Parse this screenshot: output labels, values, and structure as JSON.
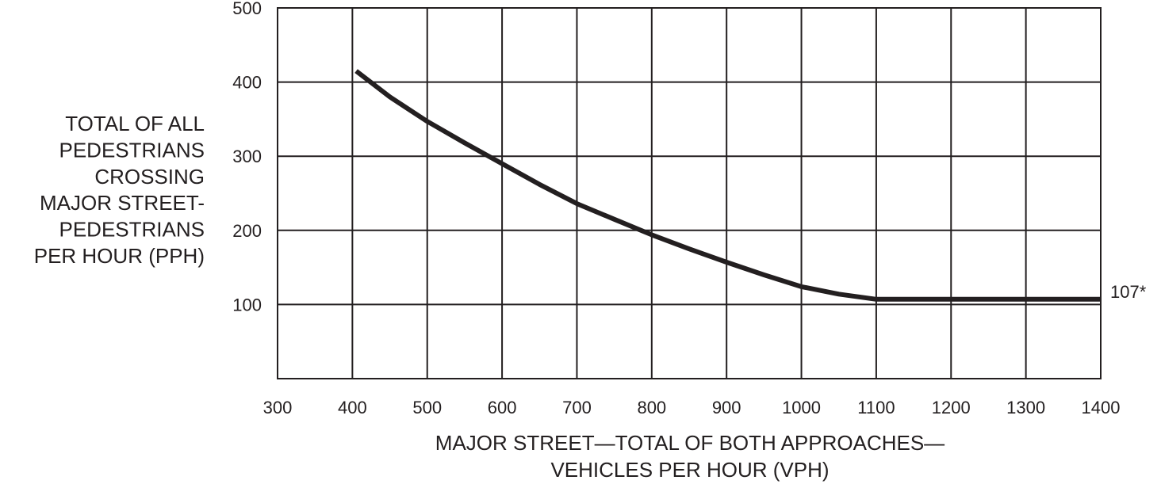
{
  "chart_data": {
    "type": "line",
    "title": "",
    "xlabel_lines": [
      "MAJOR STREET—TOTAL OF BOTH APPROACHES—",
      "VEHICLES PER HOUR (VPH)"
    ],
    "ylabel_lines": [
      "TOTAL OF ALL",
      "PEDESTRIANS",
      "CROSSING",
      "MAJOR STREET-",
      "PEDESTRIANS",
      "PER HOUR (PPH)"
    ],
    "xlim": [
      300,
      1400
    ],
    "ylim": [
      0,
      500
    ],
    "x_ticks": [
      "300",
      "400",
      "500",
      "600",
      "700",
      "800",
      "900",
      "1000",
      "1100",
      "1200",
      "1300",
      "1400"
    ],
    "y_ticks": [
      "100",
      "200",
      "300",
      "400",
      "500"
    ],
    "grid": true,
    "series": [
      {
        "x": [
          405,
          450,
          500,
          550,
          600,
          650,
          700,
          750,
          800,
          850,
          900,
          950,
          1000,
          1050,
          1100,
          1200,
          1300,
          1400
        ],
        "y": [
          415,
          380,
          347,
          318,
          290,
          262,
          236,
          215,
          194,
          175,
          157,
          140,
          124,
          114,
          107,
          107,
          107,
          107
        ]
      }
    ],
    "annotations": [
      {
        "text": "107*",
        "x": 1400,
        "y": 107
      }
    ]
  }
}
